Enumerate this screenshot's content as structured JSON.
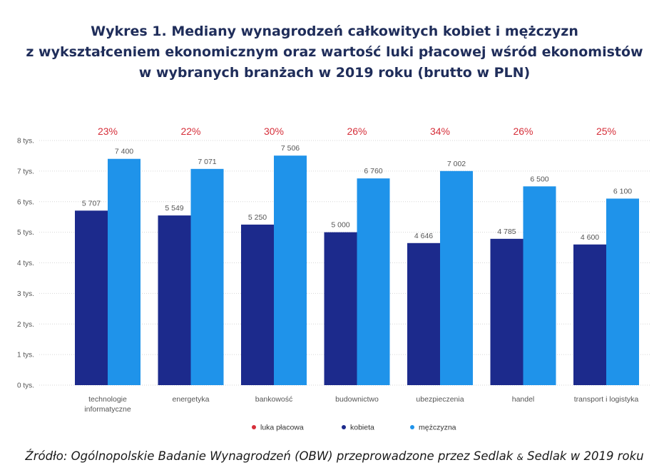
{
  "title_lines": [
    "Wykres 1. Mediany wynagrodzeń całkowitych kobiet i mężczyzn",
    "z wykształceniem ekonomicznym oraz wartość luki płacowej wśród ekonomistów",
    "w wybranych branżach w 2019 roku (brutto w PLN)"
  ],
  "chart_data": {
    "type": "bar",
    "title": "Wykres 1. Mediany wynagrodzeń całkowitych kobiet i mężczyzn z wykształceniem ekonomicznym oraz wartość luki płacowej wśród ekonomistów w wybranych branżach w 2019 roku (brutto w PLN)",
    "categories": [
      [
        "technologie",
        "informatyczne"
      ],
      [
        "energetyka"
      ],
      [
        "bankowość"
      ],
      [
        "budownictwo"
      ],
      [
        "ubezpieczenia"
      ],
      [
        "handel"
      ],
      [
        "transport i logistyka"
      ]
    ],
    "series": [
      {
        "name": "kobieta",
        "color": "#1c2a8c",
        "values": [
          5707,
          5549,
          5250,
          5000,
          4646,
          4785,
          4600
        ],
        "labels": [
          "5 707",
          "5 549",
          "5 250",
          "5 000",
          "4 646",
          "4 785",
          "4 600"
        ]
      },
      {
        "name": "mężczyzna",
        "color": "#1f93ea",
        "values": [
          7400,
          7071,
          7506,
          6760,
          7002,
          6500,
          6100
        ],
        "labels": [
          "7 400",
          "7 071",
          "7 506",
          "6 760",
          "7 002",
          "6 500",
          "6 100"
        ]
      }
    ],
    "gap": {
      "name": "luka płacowa",
      "color": "#d62f3a",
      "labels": [
        "23%",
        "22%",
        "30%",
        "26%",
        "34%",
        "26%",
        "25%"
      ]
    },
    "ylim": [
      0,
      8000
    ],
    "yticks": [
      0,
      1000,
      2000,
      3000,
      4000,
      5000,
      6000,
      7000,
      8000
    ],
    "ytick_labels": [
      "0 tys.",
      "1 tys.",
      "2 tys.",
      "3 tys.",
      "4 tys.",
      "5 tys.",
      "6 tys.",
      "7 tys.",
      "8 tys."
    ],
    "grid": true,
    "legend": [
      {
        "name": "luka płacowa",
        "color": "#d62f3a"
      },
      {
        "name": "kobieta",
        "color": "#1c2a8c"
      },
      {
        "name": "mężczyzna",
        "color": "#1f93ea"
      }
    ],
    "legend_position": "bottom"
  },
  "footer": {
    "prefix": "Źródło: Ogólnopolskie Badanie Wynagrodzeń (OBW) przeprowadzone przez Sedlak ",
    "amp": "&",
    "suffix": " Sedlak w 2019 roku"
  }
}
